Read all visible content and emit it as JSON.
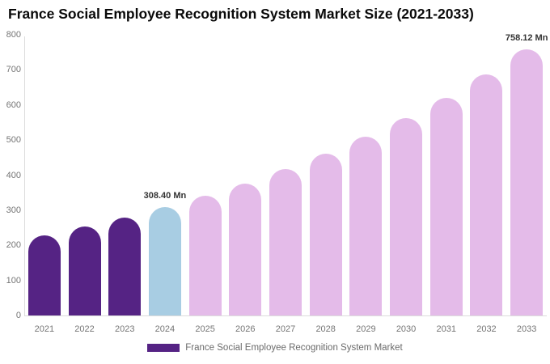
{
  "header": {
    "title": "France Social Employee Recognition System Market Size (2021-2033)"
  },
  "chart_data": {
    "type": "bar",
    "title": "France Social Employee Recognition System Market Size (2021-2033)",
    "categories": [
      "2021",
      "2022",
      "2023",
      "2024",
      "2025",
      "2026",
      "2027",
      "2028",
      "2029",
      "2030",
      "2031",
      "2032",
      "2033"
    ],
    "values": [
      228.5,
      252.6,
      279.1,
      308.4,
      340.8,
      376.6,
      416.3,
      460.1,
      508.5,
      562.0,
      621.2,
      686.6,
      758.12
    ],
    "unit": "Mn",
    "xlabel": "",
    "ylabel": "",
    "ylim": [
      0,
      800
    ],
    "yticks": [
      0,
      100,
      200,
      300,
      400,
      500,
      600,
      700,
      800
    ],
    "grid": false,
    "legend_position": "bottom",
    "bar_segments": [
      "historical",
      "historical",
      "historical",
      "current",
      "forecast",
      "forecast",
      "forecast",
      "forecast",
      "forecast",
      "forecast",
      "forecast",
      "forecast",
      "forecast"
    ],
    "bar_colors": {
      "historical": "#552384",
      "current": "#a8cde3",
      "forecast": "#e4bbe9"
    },
    "annotations": [
      {
        "category": "2024",
        "text": "308.40 Mn"
      },
      {
        "category": "2033",
        "text": "758.12 Mn"
      }
    ],
    "legend": [
      {
        "label": "France Social Employee Recognition System Market",
        "color": "#552384"
      }
    ]
  },
  "colors": {
    "background": "#ffffff",
    "axis_line": "#dcdcdc",
    "tick_label": "#757575",
    "annotation_text": "#333333",
    "legend_text": "#6b6b6b"
  }
}
